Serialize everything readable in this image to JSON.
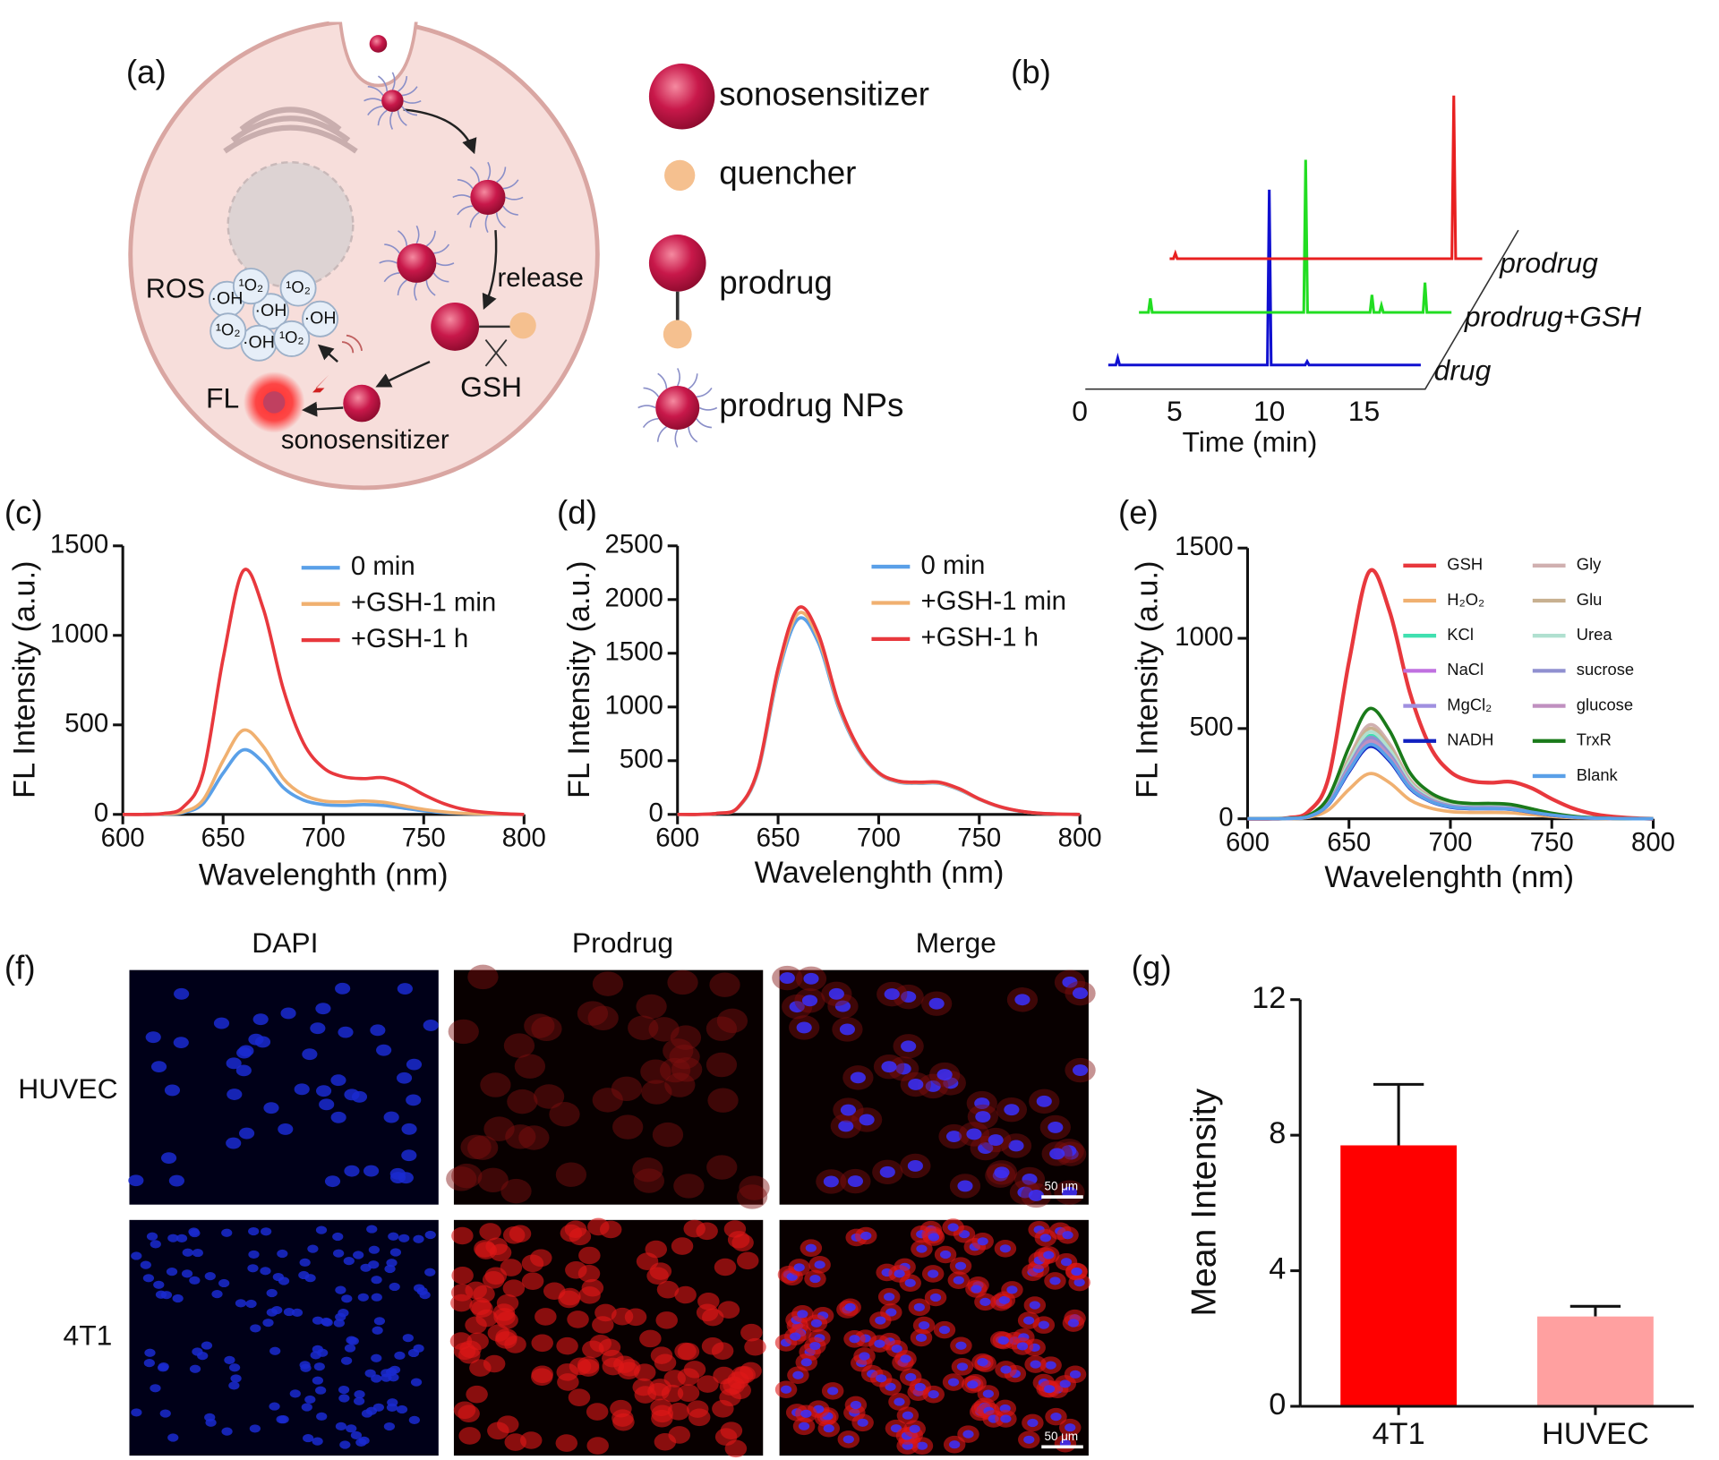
{
  "panel_labels": [
    "(a)",
    "(b)",
    "(c)",
    "(d)",
    "(e)",
    "(f)",
    "(g)"
  ],
  "diagram": {
    "ros": "ROS",
    "hydroxyl": [
      "·OH",
      "·OH",
      "·OH",
      "·OH"
    ],
    "singlet_oxygen": [
      "¹O₂",
      "¹O₂",
      "¹O₂",
      "¹O₂"
    ],
    "release": "release",
    "gsh": "GSH",
    "fl": "FL",
    "product": "sonosensitizer",
    "legend": [
      "sonosensitizer",
      "quencher",
      "prodrug",
      "prodrug NPs"
    ]
  },
  "imaging": {
    "columns": [
      "DAPI",
      "Prodrug",
      "Merge"
    ],
    "rows": [
      "HUVEC",
      "4T1"
    ],
    "scale_bars": [
      "50 μm",
      "50 μm"
    ]
  },
  "chart_data": [
    {
      "type": "chromatogram",
      "xlabel": "Time (min)",
      "xlim": [
        0,
        18
      ],
      "xticks": [
        0,
        5,
        10,
        15
      ],
      "series": [
        {
          "name": "drug",
          "color": "#1010d0",
          "x": [
            1.5,
            1.9,
            2,
            2.1,
            9.9,
            10,
            10.1,
            11.9,
            12,
            12.1,
            18
          ],
          "values": [
            0,
            0,
            4,
            0,
            0,
            100,
            0,
            0,
            2,
            0,
            0
          ]
        },
        {
          "name": "prodrug+GSH",
          "color": "#22dd22",
          "x": [
            1.5,
            2.0,
            2.1,
            2.2,
            10.2,
            10.3,
            10.4,
            13.7,
            13.8,
            13.9,
            14.2,
            14.3,
            14.4,
            16.5,
            16.6,
            16.7,
            18
          ],
          "values": [
            0,
            0,
            8,
            0,
            0,
            87,
            0,
            0,
            10,
            0,
            0,
            4,
            0,
            0,
            17,
            0,
            0
          ]
        },
        {
          "name": "prodrug",
          "color": "#e82020",
          "x": [
            1.5,
            1.7,
            1.8,
            1.9,
            16.4,
            16.5,
            16.6,
            18
          ],
          "values": [
            0,
            0,
            3,
            0,
            0,
            93,
            0,
            0
          ]
        }
      ]
    },
    {
      "type": "line",
      "xlabel": "Wavelenghth (nm)",
      "ylabel": "FL Intensity (a.u.)",
      "xlim": [
        600,
        800
      ],
      "xticks": [
        600,
        650,
        700,
        750,
        800
      ],
      "ylim": [
        0,
        1500
      ],
      "yticks": [
        0,
        500,
        1000,
        1500
      ],
      "legend": "upper right",
      "x": [
        600,
        610,
        620,
        630,
        640,
        650,
        660,
        670,
        680,
        690,
        700,
        710,
        720,
        730,
        740,
        750,
        760,
        770,
        780,
        790,
        800
      ],
      "series": [
        {
          "name": "0 min",
          "color": "#5aa0e8",
          "values": [
            0,
            0,
            2,
            10,
            60,
            230,
            360,
            290,
            150,
            80,
            55,
            50,
            55,
            50,
            35,
            20,
            10,
            5,
            2,
            0,
            0
          ]
        },
        {
          "name": "+GSH-1 min",
          "color": "#f0b070",
          "values": [
            0,
            0,
            3,
            14,
            80,
            300,
            470,
            380,
            200,
            110,
            75,
            70,
            75,
            68,
            48,
            28,
            14,
            6,
            3,
            1,
            0
          ]
        },
        {
          "name": "+GSH-1 h",
          "color": "#e8383d",
          "values": [
            0,
            0,
            5,
            40,
            230,
            870,
            1360,
            1150,
            700,
            400,
            260,
            210,
            200,
            205,
            170,
            110,
            60,
            28,
            12,
            4,
            0
          ]
        }
      ]
    },
    {
      "type": "line",
      "xlabel": "Wavelenghth (nm)",
      "ylabel": "FL Intensity (a.u.)",
      "xlim": [
        600,
        800
      ],
      "xticks": [
        600,
        650,
        700,
        750,
        800
      ],
      "ylim": [
        0,
        2500
      ],
      "yticks": [
        0,
        500,
        1000,
        1500,
        2000,
        2500
      ],
      "legend": "upper right",
      "x": [
        600,
        610,
        620,
        630,
        640,
        650,
        660,
        670,
        680,
        690,
        700,
        710,
        720,
        730,
        740,
        750,
        760,
        770,
        780,
        790,
        800
      ],
      "series": [
        {
          "name": "0 min",
          "color": "#5aa0e8",
          "values": [
            0,
            0,
            10,
            60,
            400,
            1300,
            1820,
            1600,
            1000,
            600,
            380,
            300,
            290,
            290,
            230,
            140,
            70,
            30,
            10,
            3,
            0
          ]
        },
        {
          "name": "+GSH-1 min",
          "color": "#f0b070",
          "values": [
            0,
            0,
            10,
            62,
            410,
            1330,
            1870,
            1640,
            1020,
            610,
            385,
            305,
            295,
            295,
            235,
            142,
            72,
            31,
            10,
            3,
            0
          ]
        },
        {
          "name": "+GSH-1 h",
          "color": "#e8383d",
          "values": [
            0,
            0,
            11,
            65,
            420,
            1360,
            1920,
            1680,
            1040,
            620,
            390,
            310,
            300,
            300,
            240,
            145,
            74,
            32,
            11,
            3,
            0
          ]
        }
      ]
    },
    {
      "type": "line",
      "xlabel": "Wavelenghth (nm)",
      "ylabel": "FL Intensity (a.u.)",
      "xlim": [
        600,
        800
      ],
      "xticks": [
        600,
        650,
        700,
        750,
        800
      ],
      "ylim": [
        0,
        1500
      ],
      "yticks": [
        0,
        500,
        1000,
        1500
      ],
      "legend": "upper right",
      "x": [
        600,
        610,
        620,
        630,
        640,
        650,
        660,
        670,
        680,
        690,
        700,
        710,
        720,
        730,
        740,
        750,
        760,
        770,
        780,
        790,
        800
      ],
      "series": [
        {
          "name": "GSH",
          "color": "#e8383d",
          "values": [
            0,
            0,
            5,
            40,
            230,
            870,
            1370,
            1150,
            700,
            400,
            260,
            210,
            200,
            205,
            170,
            110,
            60,
            28,
            12,
            4,
            0
          ]
        },
        {
          "name": "H₂O₂",
          "color": "#f0b070",
          "values": [
            0,
            0,
            1,
            8,
            50,
            163,
            250,
            200,
            105,
            60,
            40,
            35,
            35,
            33,
            23,
            13,
            6,
            3,
            1,
            0,
            0
          ]
        },
        {
          "name": "KCl",
          "color": "#40e0b0",
          "values": [
            0,
            0,
            2,
            14,
            92,
            299,
            460,
            368,
            193,
            110,
            74,
            64,
            64,
            60,
            41,
            23,
            12,
            5,
            2,
            0,
            0
          ]
        },
        {
          "name": "NaCl",
          "color": "#c070e0",
          "values": [
            0,
            0,
            2,
            13,
            88,
            286,
            440,
            352,
            185,
            106,
            70,
            62,
            62,
            57,
            40,
            22,
            11,
            4,
            2,
            0,
            0
          ]
        },
        {
          "name": "MgCl₂",
          "color": "#a090e0",
          "values": [
            0,
            0,
            2,
            13,
            84,
            273,
            420,
            336,
            176,
            101,
            67,
            59,
            59,
            55,
            38,
            21,
            11,
            4,
            2,
            0,
            0
          ]
        },
        {
          "name": "NADH",
          "color": "#1020c0",
          "values": [
            0,
            0,
            2,
            12,
            80,
            260,
            400,
            320,
            168,
            96,
            64,
            56,
            56,
            52,
            36,
            20,
            10,
            4,
            2,
            0,
            0
          ]
        },
        {
          "name": "Gly",
          "color": "#d0b0b0",
          "values": [
            0,
            0,
            3,
            16,
            104,
            338,
            520,
            416,
            218,
            125,
            83,
            73,
            73,
            68,
            47,
            26,
            13,
            5,
            2,
            0,
            0
          ]
        },
        {
          "name": "Glu",
          "color": "#c8b090",
          "values": [
            0,
            0,
            3,
            15,
            100,
            325,
            500,
            400,
            210,
            120,
            80,
            70,
            70,
            65,
            45,
            25,
            13,
            5,
            2,
            0,
            0
          ]
        },
        {
          "name": "Urea",
          "color": "#b0e0d0",
          "values": [
            0,
            0,
            2,
            14,
            96,
            312,
            480,
            384,
            202,
            115,
            77,
            67,
            67,
            62,
            43,
            24,
            12,
            5,
            2,
            0,
            0
          ]
        },
        {
          "name": "sucrose",
          "color": "#9090d0",
          "values": [
            0,
            0,
            2,
            14,
            90,
            293,
            450,
            360,
            189,
            108,
            72,
            63,
            63,
            59,
            41,
            23,
            11,
            5,
            2,
            0,
            0
          ]
        },
        {
          "name": "glucose",
          "color": "#c090c0",
          "values": [
            0,
            0,
            2,
            13,
            86,
            280,
            430,
            344,
            181,
            103,
            69,
            60,
            60,
            56,
            39,
            22,
            11,
            4,
            2,
            0,
            0
          ]
        },
        {
          "name": "TrxR",
          "color": "#1a7a1a",
          "values": [
            0,
            0,
            3,
            18,
            122,
            397,
            610,
            488,
            256,
            146,
            98,
            85,
            85,
            79,
            55,
            31,
            15,
            6,
            2,
            0,
            0
          ]
        },
        {
          "name": "Blank",
          "color": "#5aa0e8",
          "values": [
            0,
            0,
            2,
            12,
            82,
            267,
            410,
            328,
            172,
            98,
            66,
            57,
            57,
            53,
            37,
            21,
            10,
            4,
            2,
            0,
            0
          ]
        }
      ]
    },
    {
      "type": "bar",
      "ylabel": "Mean Intensity",
      "categories": [
        "4T1",
        "HUVEC"
      ],
      "values": [
        7.7,
        2.65
      ],
      "errors": [
        1.8,
        0.3
      ],
      "colors": [
        "#ff0000",
        "#ffa0a0"
      ],
      "ylim": [
        0,
        12
      ],
      "yticks": [
        0,
        4,
        8,
        12
      ]
    }
  ]
}
